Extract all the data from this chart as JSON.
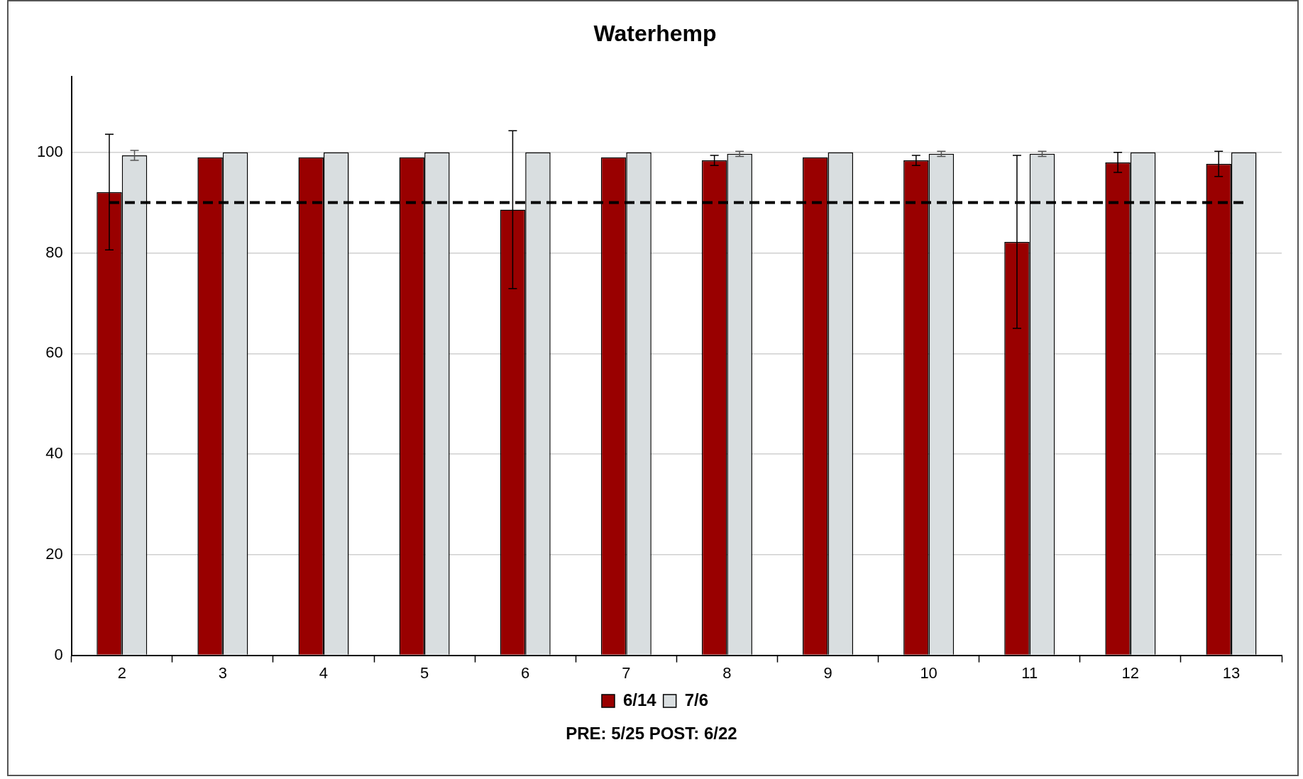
{
  "chart_data": {
    "type": "bar",
    "title": "Waterhemp",
    "categories": [
      "2",
      "3",
      "4",
      "5",
      "6",
      "7",
      "8",
      "9",
      "10",
      "11",
      "12",
      "13"
    ],
    "series": [
      {
        "name": "6/14",
        "color": "#990000",
        "values": [
          92.1,
          99,
          99,
          99,
          88.6,
          99,
          98.4,
          99,
          98.4,
          82.2,
          98,
          97.7
        ],
        "errors": [
          11.5,
          null,
          null,
          null,
          15.7,
          null,
          1,
          null,
          1,
          17.2,
          2,
          2.5
        ]
      },
      {
        "name": "7/6",
        "color": "#d9dee0",
        "values": [
          99.4,
          100,
          100,
          100,
          100,
          100,
          99.7,
          100,
          99.7,
          99.7,
          100,
          100
        ],
        "errors": [
          1,
          null,
          null,
          null,
          null,
          null,
          0.5,
          null,
          0.5,
          0.5,
          null,
          null
        ]
      }
    ],
    "ylim": [
      0,
      115
    ],
    "yticks": [
      0,
      20,
      40,
      60,
      80,
      100
    ],
    "grid": "y",
    "legend": "bottom",
    "ref_lines": [
      {
        "axis": "y",
        "value": 90,
        "color": "#000000",
        "line_style": "dashed"
      }
    ],
    "annotations": [
      "PRE: 5/25   POST: 6/22"
    ]
  }
}
